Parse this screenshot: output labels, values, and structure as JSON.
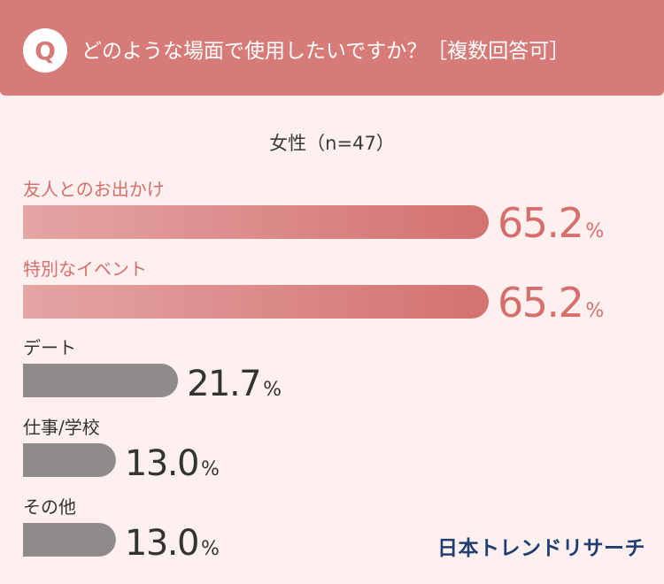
{
  "header": {
    "badge": "Q",
    "question": "どのような場面で使用したいですか？［複数回答可］"
  },
  "chart_data": {
    "type": "bar",
    "orientation": "horizontal",
    "title": "女性（n=47）",
    "categories": [
      "友人とのお出かけ",
      "特別なイベント",
      "デート",
      "仕事/学校",
      "その他"
    ],
    "values": [
      65.2,
      65.2,
      21.7,
      13.0,
      13.0
    ],
    "value_labels": [
      "65.2",
      "65.2",
      "21.7",
      "13.0",
      "13.0"
    ],
    "unit": "%",
    "highlighted": [
      true,
      true,
      false,
      false,
      false
    ],
    "colors": {
      "highlight_start": "#e4a5a5",
      "highlight_end": "#d37270",
      "highlight_text": "#d66f6b",
      "normal_bar": "#8f8b8b",
      "normal_text": "#333333"
    }
  },
  "footer": {
    "brand": "日本トレンドリサーチ"
  }
}
